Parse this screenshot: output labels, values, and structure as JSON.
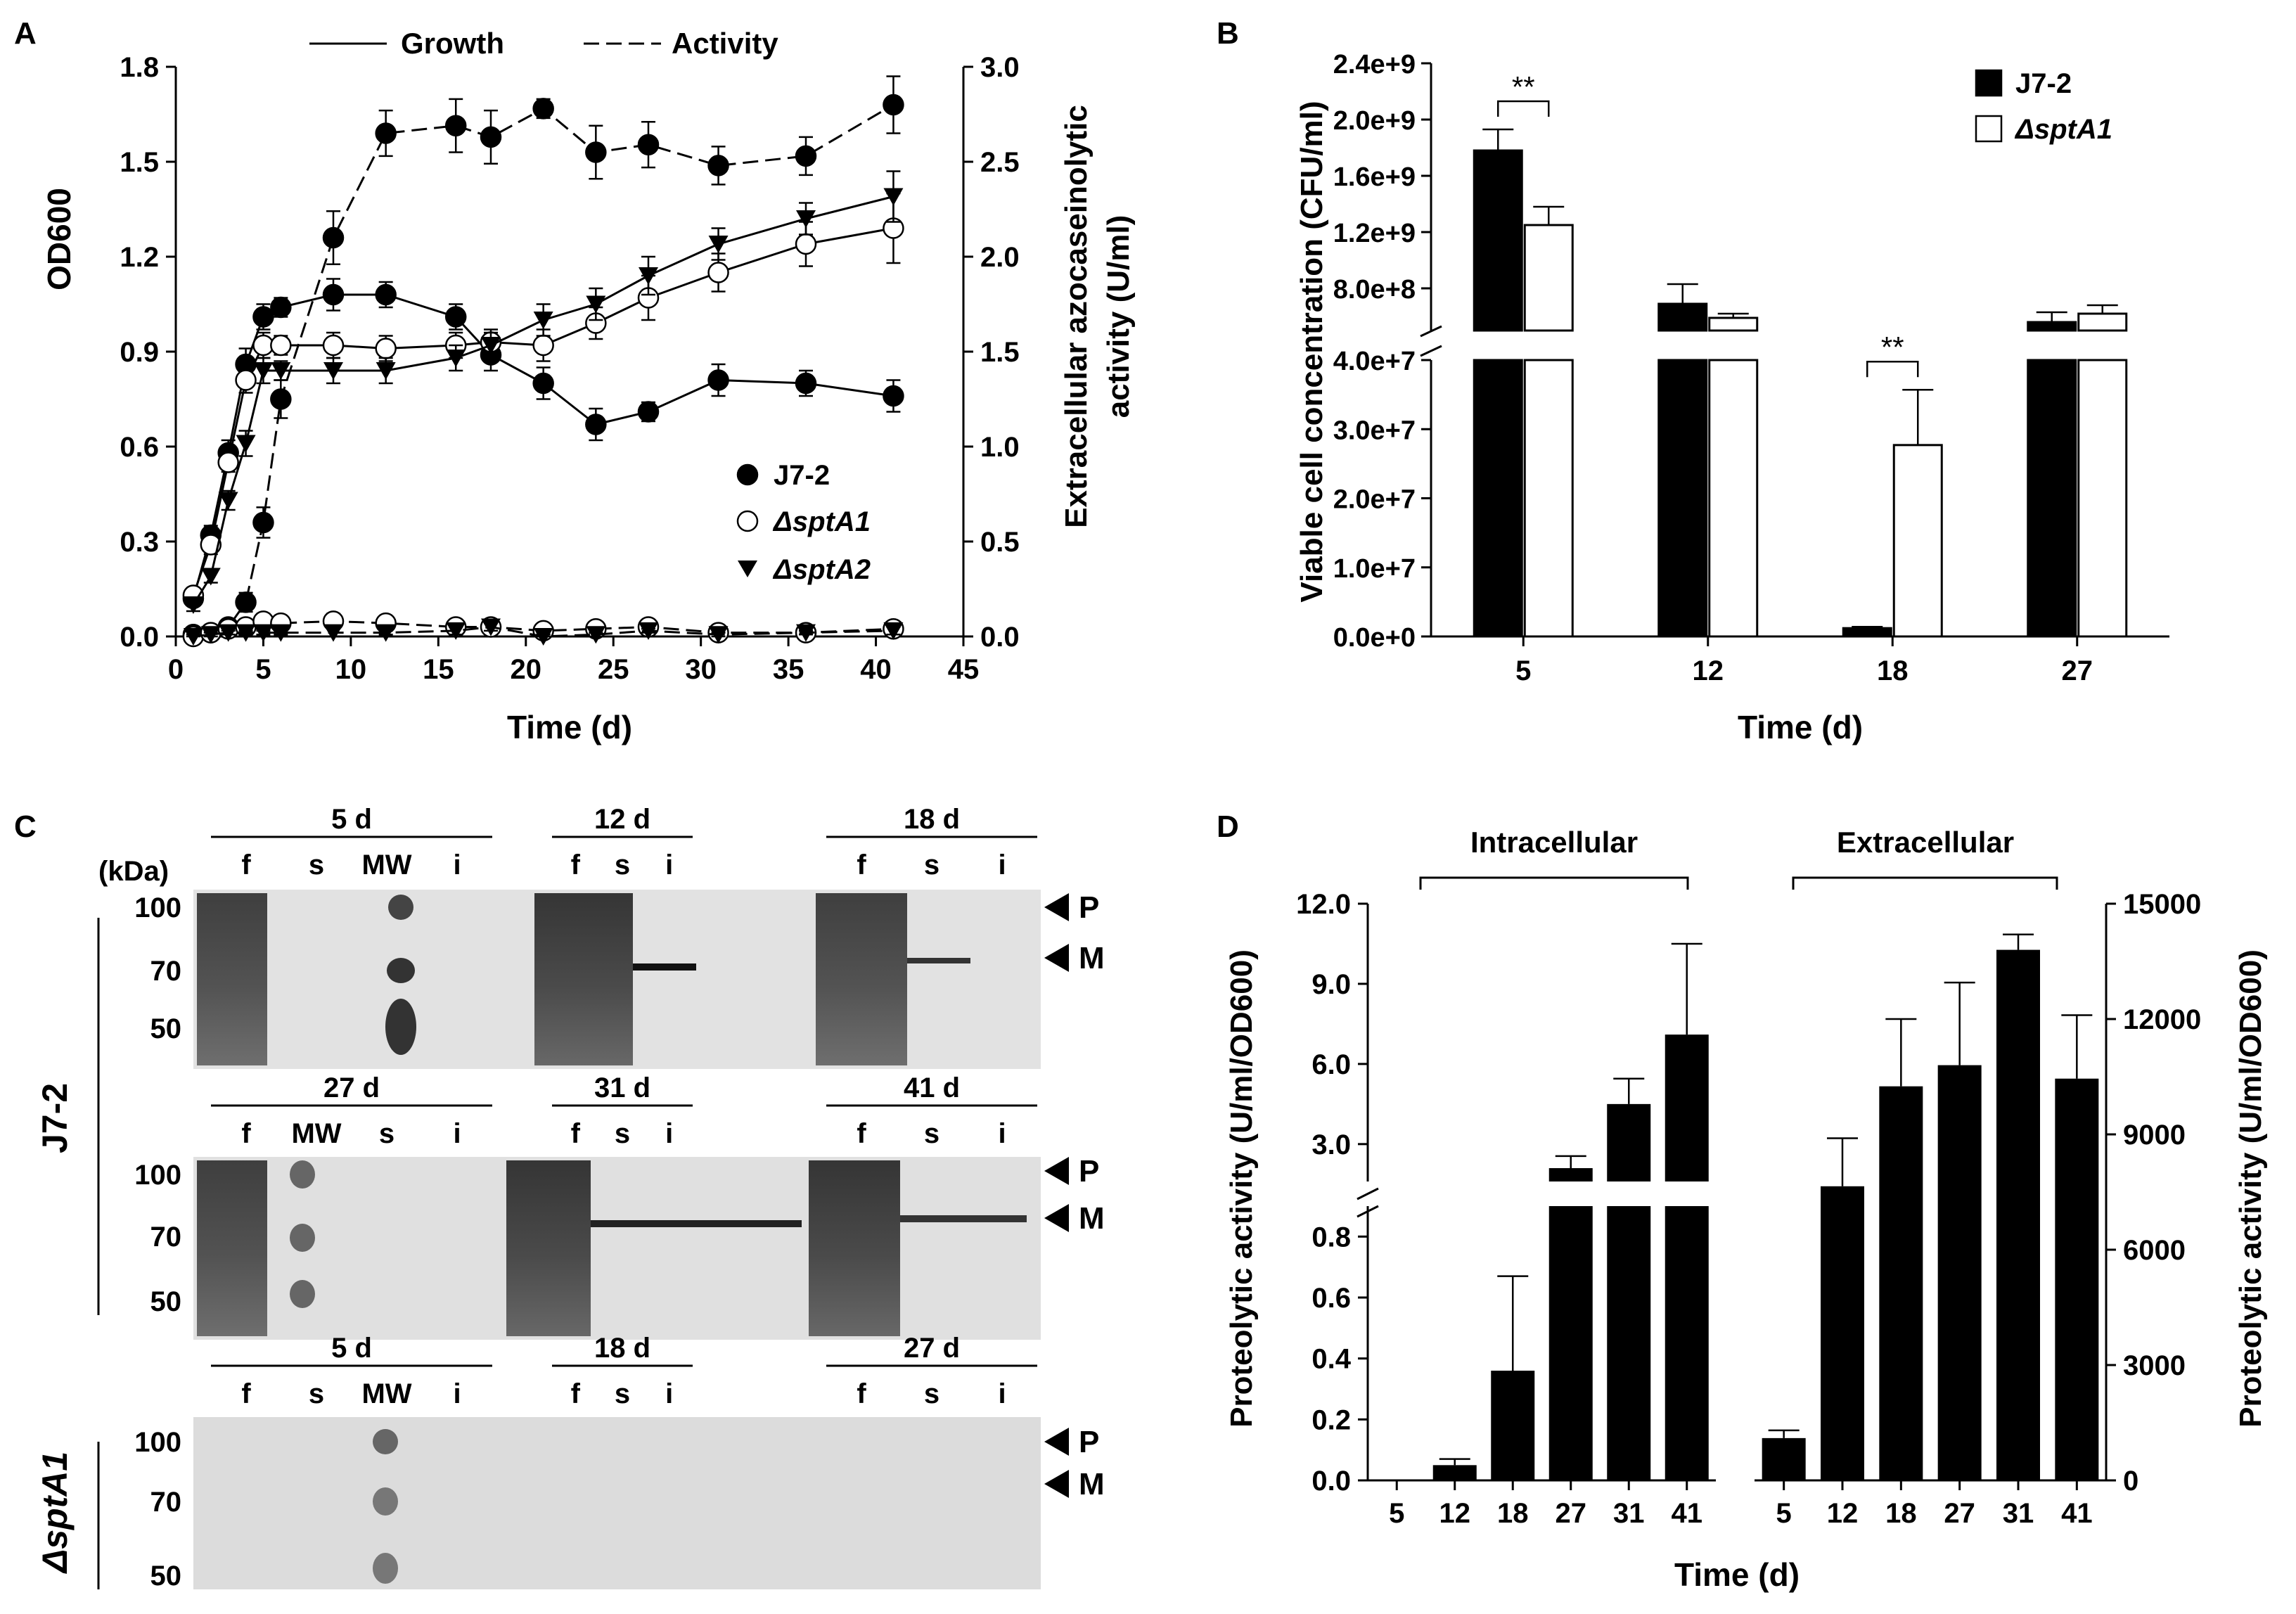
{
  "panels": {
    "A": {
      "label": "A"
    },
    "B": {
      "label": "B"
    },
    "C": {
      "label": "C"
    },
    "D": {
      "label": "D"
    }
  },
  "chart_data": [
    {
      "panel": "A",
      "type": "line",
      "title": "",
      "xlabel": "Time (d)",
      "ylabel_left": "OD600",
      "ylabel_right": [
        "Extracellular azocaseinolytic",
        "activity (U/ml)"
      ],
      "xlim": [
        0,
        45
      ],
      "xticks": [
        0,
        5,
        10,
        15,
        20,
        25,
        30,
        35,
        40,
        45
      ],
      "ylim_left": [
        0,
        1.8
      ],
      "yticks_left": [
        "0.0",
        "0.3",
        "0.6",
        "0.9",
        "1.2",
        "1.5",
        "1.8"
      ],
      "ylim_right": [
        0,
        3.0
      ],
      "yticks_right": [
        "0.0",
        "0.5",
        "1.0",
        "1.5",
        "2.0",
        "2.5",
        "3.0"
      ],
      "line_legend": [
        "Growth",
        "Activity"
      ],
      "marker_legend": [
        "J7-2",
        "ΔsptA1",
        "ΔsptA2"
      ],
      "series": [
        {
          "name": "J7-2 growth",
          "strain": "J7-2",
          "kind": "growth",
          "marker": "filled-circle",
          "dash": "solid",
          "x": [
            1,
            2,
            3,
            4,
            5,
            6,
            9,
            12,
            16,
            18,
            21,
            24,
            27,
            31,
            36,
            41
          ],
          "y": [
            0.12,
            0.32,
            0.58,
            0.86,
            1.01,
            1.04,
            1.08,
            1.08,
            1.01,
            0.89,
            0.8,
            0.67,
            0.71,
            0.81,
            0.8,
            0.76
          ],
          "err": [
            0.02,
            0.03,
            0.04,
            0.05,
            0.04,
            0.03,
            0.05,
            0.04,
            0.04,
            0.05,
            0.05,
            0.05,
            0.03,
            0.05,
            0.04,
            0.05
          ]
        },
        {
          "name": "J7-2 activity",
          "strain": "J7-2",
          "kind": "activity",
          "marker": "filled-circle",
          "dash": "dashed",
          "x": [
            1,
            2,
            3,
            4,
            5,
            6,
            9,
            12,
            16,
            18,
            21,
            24,
            27,
            31,
            36,
            41
          ],
          "y": [
            0.01,
            0.02,
            0.05,
            0.18,
            0.6,
            1.25,
            2.1,
            2.65,
            2.69,
            2.63,
            2.78,
            2.55,
            2.59,
            2.48,
            2.53,
            2.8
          ],
          "err": [
            0.01,
            0.02,
            0.03,
            0.05,
            0.08,
            0.1,
            0.14,
            0.12,
            0.14,
            0.14,
            0.05,
            0.14,
            0.12,
            0.1,
            0.1,
            0.15
          ]
        },
        {
          "name": "ΔsptA1 growth",
          "strain": "ΔsptA1",
          "kind": "growth",
          "marker": "open-circle",
          "dash": "solid",
          "x": [
            1,
            2,
            3,
            4,
            5,
            6,
            9,
            12,
            16,
            18,
            21,
            24,
            27,
            31,
            36,
            41
          ],
          "y": [
            0.13,
            0.29,
            0.55,
            0.81,
            0.92,
            0.92,
            0.92,
            0.91,
            0.92,
            0.93,
            0.92,
            0.99,
            1.07,
            1.15,
            1.24,
            1.29
          ],
          "err": [
            0.02,
            0.03,
            0.03,
            0.04,
            0.04,
            0.03,
            0.04,
            0.04,
            0.04,
            0.04,
            0.05,
            0.05,
            0.07,
            0.06,
            0.07,
            0.11
          ]
        },
        {
          "name": "ΔsptA1 activity",
          "strain": "ΔsptA1",
          "kind": "activity",
          "marker": "open-circle",
          "dash": "dashed",
          "x": [
            1,
            2,
            3,
            4,
            5,
            6,
            9,
            12,
            16,
            18,
            21,
            24,
            27,
            31,
            36,
            41
          ],
          "y": [
            0.0,
            0.02,
            0.04,
            0.05,
            0.08,
            0.07,
            0.08,
            0.07,
            0.05,
            0.05,
            0.03,
            0.04,
            0.05,
            0.02,
            0.02,
            0.04
          ],
          "err": [
            0.01,
            0.02,
            0.02,
            0.03,
            0.04,
            0.03,
            0.04,
            0.02,
            0.02,
            0.02,
            0.02,
            0.02,
            0.02,
            0.01,
            0.01,
            0.02
          ]
        },
        {
          "name": "ΔsptA2 growth",
          "strain": "ΔsptA2",
          "kind": "growth",
          "marker": "filled-triangle-down",
          "dash": "solid",
          "x": [
            1,
            2,
            3,
            4,
            5,
            6,
            9,
            12,
            16,
            18,
            21,
            24,
            27,
            31,
            36,
            41
          ],
          "y": [
            0.1,
            0.19,
            0.43,
            0.61,
            0.84,
            0.84,
            0.84,
            0.84,
            0.88,
            0.92,
            1.0,
            1.05,
            1.14,
            1.24,
            1.32,
            1.39
          ],
          "err": [
            0.02,
            0.02,
            0.03,
            0.04,
            0.04,
            0.03,
            0.04,
            0.04,
            0.04,
            0.04,
            0.05,
            0.05,
            0.06,
            0.05,
            0.05,
            0.08
          ]
        },
        {
          "name": "ΔsptA2 activity",
          "strain": "ΔsptA2",
          "kind": "activity",
          "marker": "filled-triangle-down",
          "dash": "dashed",
          "x": [
            1,
            2,
            3,
            4,
            5,
            6,
            9,
            12,
            16,
            18,
            21,
            24,
            27,
            31,
            36,
            41
          ],
          "y": [
            0.0,
            0.01,
            0.02,
            0.02,
            0.02,
            0.02,
            0.02,
            0.02,
            0.03,
            0.05,
            0.0,
            0.01,
            0.03,
            0.01,
            0.02,
            0.03
          ],
          "err": [
            0.01,
            0.01,
            0.01,
            0.01,
            0.01,
            0.01,
            0.02,
            0.01,
            0.02,
            0.02,
            0.01,
            0.01,
            0.01,
            0.01,
            0.01,
            0.02
          ]
        }
      ]
    },
    {
      "panel": "B",
      "type": "bar",
      "title": "",
      "xlabel": "Time (d)",
      "ylabel": "Viable cell concentration (CFU/ml)",
      "categories": [
        "5",
        "12",
        "18",
        "27"
      ],
      "legend": [
        "J7-2",
        "ΔsptA1"
      ],
      "yticks_lower": [
        "0.0e+0",
        "1.0e+7",
        "2.0e+7",
        "3.0e+7",
        "4.0e+7"
      ],
      "yticks_upper": [
        "8.0e+8",
        "1.2e+9",
        "1.6e+9",
        "2.0e+9",
        "2.4e+9"
      ],
      "axis_break": "between 4.0e+7 and 8.0e+8",
      "series": [
        {
          "name": "J7-2",
          "fill": "#000000",
          "values": [
            1780000000,
            690000000,
            1200000,
            560000000
          ],
          "err": [
            150000000,
            140000000,
            200000,
            70000000
          ]
        },
        {
          "name": "ΔsptA1",
          "fill": "#ffffff",
          "values": [
            1250000000,
            590000000,
            27700000,
            620000000
          ],
          "err": [
            130000000,
            30000000,
            8000000,
            60000000
          ]
        }
      ],
      "significance": [
        {
          "category": "5",
          "label": "**"
        },
        {
          "category": "18",
          "label": "**"
        }
      ]
    },
    {
      "panel": "D",
      "type": "bar",
      "title": "",
      "xlabel": "Time (d)",
      "groups": [
        {
          "name": "Intracellular",
          "ylabel": "Proteolytic activity (U/ml/OD600)",
          "categories": [
            "5",
            "12",
            "18",
            "27",
            "31",
            "41"
          ],
          "values": [
            0.0,
            0.05,
            0.36,
            2.1,
            4.5,
            7.1
          ],
          "err": [
            0.0,
            0.02,
            0.31,
            0.45,
            0.95,
            3.4
          ],
          "yticks_lower": [
            "0.0",
            "0.2",
            "0.4",
            "0.6",
            "0.8"
          ],
          "yticks_upper": [
            "3.0",
            "6.0",
            "9.0",
            "12.0"
          ],
          "axis_break": "between 0.8 and 3.0"
        },
        {
          "name": "Extracellular",
          "ylabel": "Proteolytic activity (U/ml/OD600)",
          "categories": [
            "5",
            "12",
            "18",
            "27",
            "31",
            "41"
          ],
          "values": [
            1100,
            7650,
            10250,
            10800,
            13800,
            10450
          ],
          "err": [
            200,
            1250,
            1750,
            2150,
            400,
            1650
          ],
          "ylim": [
            0,
            15000
          ],
          "yticks": [
            "0",
            "3000",
            "6000",
            "9000",
            "12000",
            "15000"
          ]
        }
      ]
    }
  ],
  "gel": {
    "kda_label": "(kDa)",
    "markers": [
      "100",
      "70",
      "50"
    ],
    "strain_labels": [
      "J7-2",
      "ΔsptA1"
    ],
    "band_labels": [
      "P",
      "M"
    ],
    "rows": [
      {
        "strain": "J7-2",
        "groups": [
          {
            "time": "5 d",
            "lanes": [
              "f",
              "s",
              "MW",
              "i"
            ]
          },
          {
            "time": "12 d",
            "lanes": [
              "f",
              "s",
              "i"
            ]
          },
          {
            "time": "18 d",
            "lanes": [
              "f",
              "s",
              "i"
            ]
          }
        ]
      },
      {
        "strain": "J7-2",
        "groups": [
          {
            "time": "27 d",
            "lanes": [
              "f",
              "MW",
              "s",
              "i"
            ]
          },
          {
            "time": "31 d",
            "lanes": [
              "f",
              "s",
              "i"
            ]
          },
          {
            "time": "41 d",
            "lanes": [
              "f",
              "s",
              "i"
            ]
          }
        ]
      },
      {
        "strain": "ΔsptA1",
        "groups": [
          {
            "time": "5 d",
            "lanes": [
              "f",
              "s",
              "MW",
              "i"
            ]
          },
          {
            "time": "18 d",
            "lanes": [
              "f",
              "s",
              "i"
            ]
          },
          {
            "time": "27 d",
            "lanes": [
              "f",
              "s",
              "i"
            ]
          }
        ]
      }
    ]
  }
}
